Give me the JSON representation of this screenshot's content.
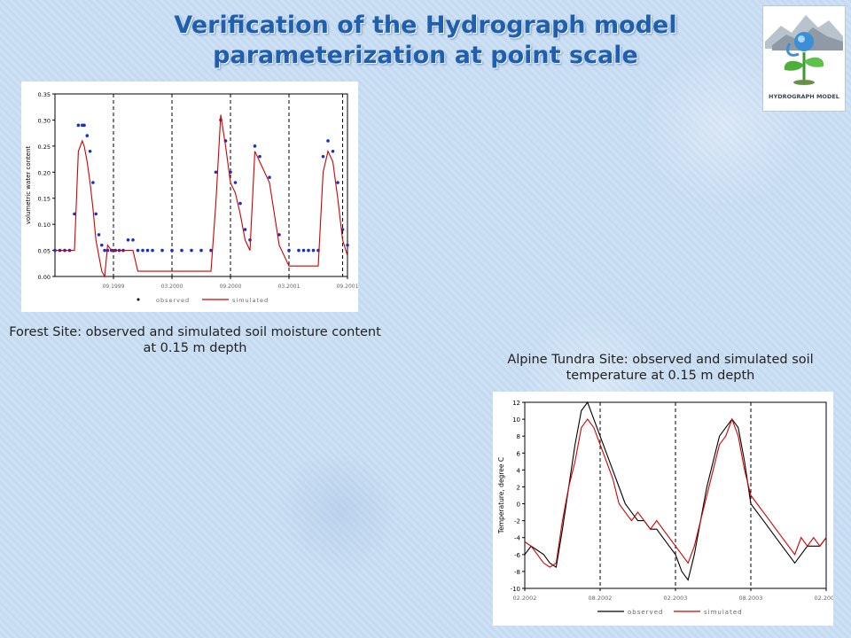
{
  "slide": {
    "title_line1": "Verification of the Hydrograph model",
    "title_line2": "parameterization at point scale",
    "logo_text": "HYDROGRAPH MODEL"
  },
  "captions": {
    "forest": "Forest Site: observed and simulated soil moisture content at 0.15 m depth",
    "tundra": "Alpine Tundra Site: observed and simulated soil temperature at 0.15 m depth"
  },
  "chart_data": [
    {
      "type": "line",
      "ylabel": "volumetric water content",
      "ylim": [
        0,
        0.35
      ],
      "yticks": [
        0,
        0.05,
        0.1,
        0.15,
        0.2,
        0.25,
        0.3,
        0.35
      ],
      "ytick_labels": [
        "0.00",
        "0.05",
        "0.10",
        "0.15",
        "0.20",
        "0.25",
        "0.30",
        "0.35"
      ],
      "xlim": [
        0,
        30
      ],
      "xticks": [
        6,
        12,
        18,
        24,
        30
      ],
      "xtick_labels": [
        "09.1999",
        "03.2000",
        "09.2000",
        "03.2001",
        "09.2001"
      ],
      "vlines": [
        6,
        12,
        18,
        24,
        29.5
      ],
      "legend": "bottom",
      "series": [
        {
          "name": "observed",
          "style": "points",
          "color": "#1a2fcc",
          "x": [
            0,
            0.5,
            1,
            1.5,
            2,
            2.4,
            2.8,
            3.0,
            3.3,
            3.6,
            3.9,
            4.2,
            4.5,
            4.8,
            5.1,
            5.4,
            5.8,
            6.2,
            6.6,
            7.0,
            7.5,
            8.0,
            8.5,
            9.0,
            9.5,
            10,
            11,
            12,
            13,
            14,
            15,
            16,
            16.5,
            17.0,
            17.5,
            18.0,
            18.5,
            19.0,
            19.5,
            20.0,
            20.5,
            21,
            22,
            23,
            24,
            25,
            25.5,
            26.0,
            26.5,
            27.0,
            27.5,
            28.0,
            28.5,
            29.0,
            29.5,
            30
          ],
          "y": [
            0.05,
            0.05,
            0.05,
            0.05,
            0.12,
            0.29,
            0.29,
            0.29,
            0.27,
            0.24,
            0.18,
            0.12,
            0.08,
            0.06,
            0.05,
            0.05,
            0.05,
            0.05,
            0.05,
            0.05,
            0.07,
            0.07,
            0.05,
            0.05,
            0.05,
            0.05,
            0.05,
            0.05,
            0.05,
            0.05,
            0.05,
            0.05,
            0.2,
            0.3,
            0.26,
            0.2,
            0.18,
            0.14,
            0.09,
            0.07,
            0.25,
            0.23,
            0.19,
            0.08,
            0.05,
            0.05,
            0.05,
            0.05,
            0.05,
            0.05,
            0.23,
            0.26,
            0.24,
            0.18,
            0.09,
            0.06
          ]
        },
        {
          "name": "simulated",
          "style": "line",
          "color": "#d00000",
          "x": [
            0,
            0.5,
            1,
            1.5,
            2,
            2.4,
            2.8,
            3.0,
            3.3,
            3.6,
            3.9,
            4.2,
            4.5,
            4.8,
            5.1,
            5.4,
            5.8,
            6.2,
            6.6,
            7.0,
            7.5,
            8.0,
            8.5,
            9.0,
            9.5,
            10,
            11,
            12,
            13,
            14,
            15,
            16,
            16.5,
            17.0,
            17.5,
            18.0,
            18.5,
            19.0,
            19.5,
            20.0,
            20.5,
            21,
            22,
            23,
            24,
            25,
            25.5,
            26.0,
            26.5,
            27.0,
            27.5,
            28.0,
            28.5,
            29.0,
            29.5,
            30
          ],
          "y": [
            0.05,
            0.05,
            0.05,
            0.05,
            0.05,
            0.24,
            0.26,
            0.25,
            0.22,
            0.18,
            0.13,
            0.07,
            0.04,
            0.01,
            0.0,
            0.06,
            0.05,
            0.05,
            0.05,
            0.05,
            0.05,
            0.05,
            0.01,
            0.01,
            0.01,
            0.01,
            0.01,
            0.01,
            0.01,
            0.01,
            0.01,
            0.01,
            0.14,
            0.31,
            0.25,
            0.18,
            0.16,
            0.12,
            0.07,
            0.05,
            0.24,
            0.22,
            0.18,
            0.06,
            0.02,
            0.02,
            0.02,
            0.02,
            0.02,
            0.02,
            0.2,
            0.24,
            0.22,
            0.15,
            0.07,
            0.04
          ]
        }
      ]
    },
    {
      "type": "line",
      "ylabel": "Temperature, degree C",
      "ylim": [
        -10,
        12
      ],
      "yticks": [
        -10,
        -8,
        -6,
        -4,
        -2,
        0,
        2,
        4,
        6,
        8,
        10,
        12
      ],
      "ytick_labels": [
        "-10",
        "-8",
        "-6",
        "-4",
        "-2",
        "0",
        "2",
        "4",
        "6",
        "8",
        "10",
        "12"
      ],
      "xlim": [
        0,
        24
      ],
      "xticks": [
        0,
        6,
        12,
        18,
        24
      ],
      "xtick_labels": [
        "02.2002",
        "08.2002",
        "02.2003",
        "08.2003",
        "02.2004"
      ],
      "vlines": [
        6,
        12,
        18,
        24
      ],
      "legend": "bottom",
      "series": [
        {
          "name": "observed",
          "style": "line",
          "color": "#000000",
          "x": [
            0,
            0.5,
            1,
            1.5,
            2,
            2.5,
            3,
            3.5,
            4,
            4.5,
            5,
            5.5,
            6,
            6.5,
            7,
            7.5,
            8,
            8.5,
            9,
            9.5,
            10,
            10.5,
            11,
            11.5,
            12,
            12.5,
            13,
            13.5,
            14,
            14.5,
            15,
            15.5,
            16,
            16.5,
            17,
            17.5,
            18,
            18.5,
            19,
            19.5,
            20,
            20.5,
            21,
            21.5,
            22,
            22.5,
            23,
            23.5,
            24
          ],
          "y": [
            -6,
            -5,
            -5.5,
            -6,
            -7,
            -7.5,
            -3,
            2,
            7,
            11,
            12,
            10,
            8,
            6,
            4,
            2,
            0,
            -1,
            -2,
            -2,
            -3,
            -3,
            -4,
            -5,
            -6,
            -8,
            -9,
            -6,
            -2,
            2,
            5,
            8,
            9,
            10,
            9,
            5,
            0,
            -1,
            -2,
            -3,
            -4,
            -5,
            -6,
            -7,
            -6,
            -5,
            -5,
            -5,
            -4
          ]
        },
        {
          "name": "simulated",
          "style": "line",
          "color": "#d00000",
          "x": [
            0,
            0.5,
            1,
            1.5,
            2,
            2.5,
            3,
            3.5,
            4,
            4.5,
            5,
            5.5,
            6,
            6.5,
            7,
            7.5,
            8,
            8.5,
            9,
            9.5,
            10,
            10.5,
            11,
            11.5,
            12,
            12.5,
            13,
            13.5,
            14,
            14.5,
            15,
            15.5,
            16,
            16.5,
            17,
            17.5,
            18,
            18.5,
            19,
            19.5,
            20,
            20.5,
            21,
            21.5,
            22,
            22.5,
            23,
            23.5,
            24
          ],
          "y": [
            -4.5,
            -5,
            -6,
            -7,
            -7.5,
            -7,
            -2,
            2,
            5,
            9,
            10,
            9,
            7,
            5,
            3,
            0,
            -1,
            -2,
            -1,
            -2,
            -3,
            -2,
            -3,
            -4,
            -5,
            -6,
            -7,
            -5,
            -2,
            1,
            4,
            7,
            8,
            10,
            8,
            4,
            1,
            0,
            -1,
            -2,
            -3,
            -4,
            -5,
            -6,
            -4,
            -5,
            -4,
            -5,
            -4
          ]
        }
      ]
    }
  ]
}
